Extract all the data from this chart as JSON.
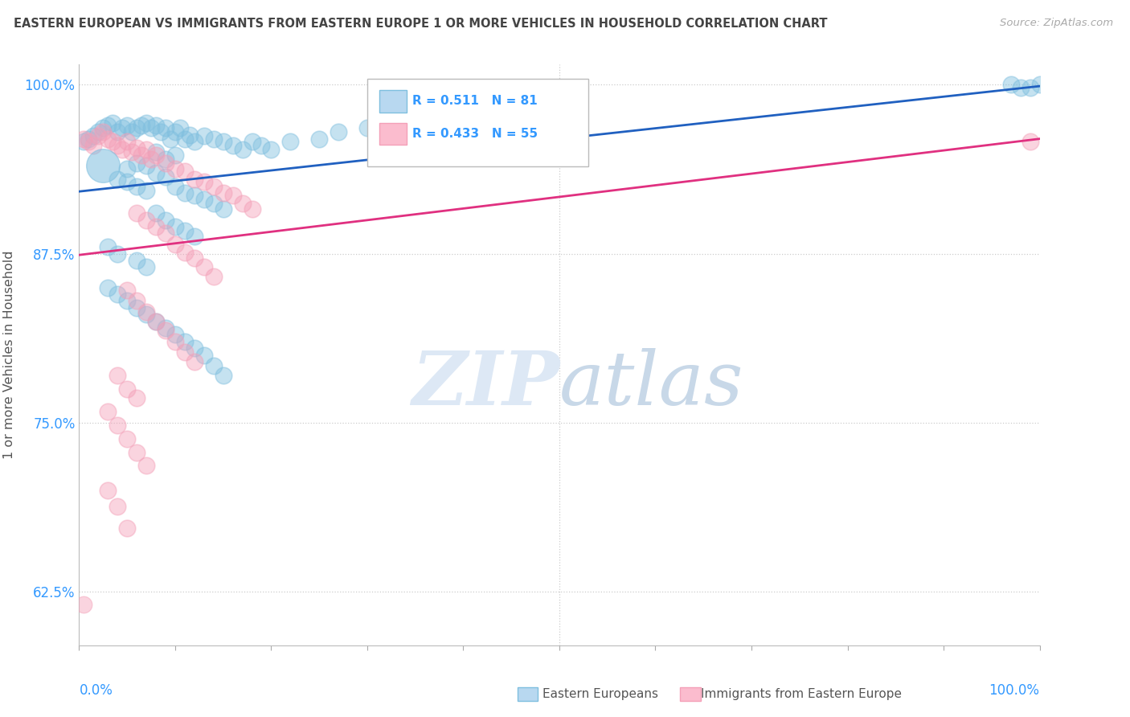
{
  "title": "EASTERN EUROPEAN VS IMMIGRANTS FROM EASTERN EUROPE 1 OR MORE VEHICLES IN HOUSEHOLD CORRELATION CHART",
  "source": "Source: ZipAtlas.com",
  "ylabel": "1 or more Vehicles in Household",
  "legend_blue_R": "R = 0.511",
  "legend_blue_N": "N = 81",
  "legend_pink_R": "R = 0.433",
  "legend_pink_N": "N = 55",
  "legend_blue_label": "Eastern Europeans",
  "legend_pink_label": "Immigrants from Eastern Europe",
  "blue_color": "#7fbfdf",
  "pink_color": "#f4a0b8",
  "line_blue": "#2060c0",
  "line_pink": "#e03080",
  "title_color": "#444444",
  "axis_label_color": "#3399ff",
  "grid_color": "#cccccc",
  "watermark_color": "#dde8f5",
  "xlim": [
    0.0,
    1.0
  ],
  "ylim": [
    0.585,
    1.015
  ],
  "yticks": [
    0.625,
    0.75,
    0.875,
    1.0
  ],
  "ytick_labels": [
    "62.5%",
    "75.0%",
    "87.5%",
    "100.0%"
  ],
  "blue_line_y0": 0.921,
  "blue_line_y1": 0.999,
  "pink_line_y0": 0.874,
  "pink_line_y1": 0.96,
  "blue_x": [
    0.005,
    0.01,
    0.015,
    0.02,
    0.025,
    0.03,
    0.035,
    0.04,
    0.045,
    0.05,
    0.055,
    0.06,
    0.065,
    0.07,
    0.075,
    0.08,
    0.085,
    0.09,
    0.095,
    0.1,
    0.105,
    0.11,
    0.115,
    0.12,
    0.13,
    0.14,
    0.15,
    0.16,
    0.17,
    0.18,
    0.19,
    0.2,
    0.22,
    0.25,
    0.27,
    0.3,
    0.35,
    0.08,
    0.09,
    0.1,
    0.05,
    0.06,
    0.07,
    0.08,
    0.09,
    0.04,
    0.05,
    0.06,
    0.07,
    0.1,
    0.11,
    0.12,
    0.13,
    0.14,
    0.15,
    0.08,
    0.09,
    0.1,
    0.11,
    0.12,
    0.97,
    0.98,
    0.99,
    1.0,
    0.03,
    0.04,
    0.06,
    0.07,
    0.03,
    0.04,
    0.05,
    0.06,
    0.07,
    0.08,
    0.09,
    0.1,
    0.11,
    0.12,
    0.13,
    0.14,
    0.15
  ],
  "blue_y": [
    0.958,
    0.96,
    0.962,
    0.965,
    0.968,
    0.97,
    0.972,
    0.965,
    0.968,
    0.97,
    0.965,
    0.968,
    0.97,
    0.972,
    0.968,
    0.97,
    0.965,
    0.968,
    0.96,
    0.965,
    0.968,
    0.96,
    0.963,
    0.958,
    0.962,
    0.96,
    0.958,
    0.955,
    0.952,
    0.958,
    0.955,
    0.952,
    0.958,
    0.96,
    0.965,
    0.968,
    0.97,
    0.95,
    0.945,
    0.948,
    0.938,
    0.942,
    0.94,
    0.935,
    0.932,
    0.93,
    0.928,
    0.925,
    0.922,
    0.925,
    0.92,
    0.918,
    0.915,
    0.912,
    0.908,
    0.905,
    0.9,
    0.895,
    0.892,
    0.888,
    1.0,
    0.998,
    0.998,
    1.0,
    0.88,
    0.875,
    0.87,
    0.865,
    0.85,
    0.845,
    0.84,
    0.835,
    0.83,
    0.825,
    0.82,
    0.815,
    0.81,
    0.805,
    0.8,
    0.792,
    0.785
  ],
  "blue_large_x": [
    0.025
  ],
  "blue_large_y": [
    0.94
  ],
  "pink_x": [
    0.005,
    0.01,
    0.015,
    0.02,
    0.025,
    0.03,
    0.035,
    0.04,
    0.045,
    0.05,
    0.055,
    0.06,
    0.065,
    0.07,
    0.075,
    0.08,
    0.09,
    0.1,
    0.11,
    0.12,
    0.13,
    0.14,
    0.15,
    0.16,
    0.17,
    0.18,
    0.06,
    0.07,
    0.08,
    0.09,
    0.1,
    0.11,
    0.12,
    0.13,
    0.14,
    0.05,
    0.06,
    0.07,
    0.08,
    0.09,
    0.1,
    0.11,
    0.12,
    0.04,
    0.05,
    0.06,
    0.03,
    0.04,
    0.05,
    0.06,
    0.07,
    0.03,
    0.04,
    0.05,
    0.99
  ],
  "pink_y": [
    0.96,
    0.958,
    0.955,
    0.962,
    0.965,
    0.96,
    0.958,
    0.955,
    0.952,
    0.958,
    0.95,
    0.953,
    0.948,
    0.952,
    0.945,
    0.948,
    0.942,
    0.938,
    0.936,
    0.93,
    0.928,
    0.925,
    0.92,
    0.918,
    0.912,
    0.908,
    0.905,
    0.9,
    0.895,
    0.89,
    0.882,
    0.876,
    0.872,
    0.865,
    0.858,
    0.848,
    0.84,
    0.832,
    0.825,
    0.818,
    0.81,
    0.802,
    0.795,
    0.785,
    0.775,
    0.768,
    0.758,
    0.748,
    0.738,
    0.728,
    0.718,
    0.7,
    0.688,
    0.672,
    0.958
  ],
  "pink_lone_x": [
    0.005
  ],
  "pink_lone_y": [
    0.615
  ]
}
